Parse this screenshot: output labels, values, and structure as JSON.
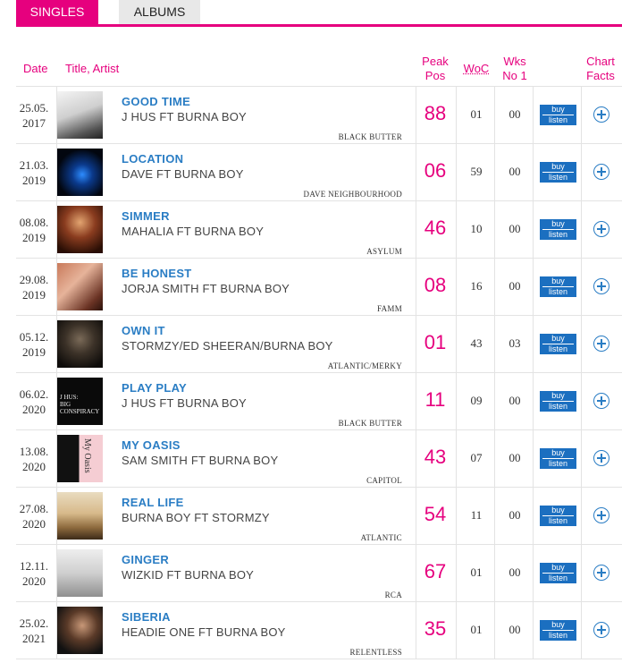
{
  "tabs": {
    "singles": "SINGLES",
    "albums": "ALBUMS"
  },
  "headers": {
    "date": "Date",
    "title_artist": "Title, Artist",
    "peak_line1": "Peak",
    "peak_line2": "Pos",
    "woc": "WoC",
    "wks_line1": "Wks",
    "wks_line2": "No 1",
    "facts_line1": "Chart",
    "facts_line2": "Facts"
  },
  "buy_label": "buy",
  "listen_label": "listen",
  "colors": {
    "accent": "#e6007e",
    "link": "#2a7dc4",
    "button": "#1b6fc0"
  },
  "rows": [
    {
      "date1": "25.05.",
      "date2": "2017",
      "title": "GOOD TIME",
      "artist": "J HUS FT BURNA BOY",
      "label": "BLACK BUTTER",
      "peak": "88",
      "woc": "01",
      "wks": "00"
    },
    {
      "date1": "21.03.",
      "date2": "2019",
      "title": "LOCATION",
      "artist": "DAVE FT BURNA BOY",
      "label": "DAVE NEIGHBOURHOOD",
      "peak": "06",
      "woc": "59",
      "wks": "00"
    },
    {
      "date1": "08.08.",
      "date2": "2019",
      "title": "SIMMER",
      "artist": "MAHALIA FT BURNA BOY",
      "label": "ASYLUM",
      "peak": "46",
      "woc": "10",
      "wks": "00"
    },
    {
      "date1": "29.08.",
      "date2": "2019",
      "title": "BE HONEST",
      "artist": "JORJA SMITH FT BURNA BOY",
      "label": "FAMM",
      "peak": "08",
      "woc": "16",
      "wks": "00"
    },
    {
      "date1": "05.12.",
      "date2": "2019",
      "title": "OWN IT",
      "artist": "STORMZY/ED SHEERAN/BURNA BOY",
      "label": "ATLANTIC/MERKY",
      "peak": "01",
      "woc": "43",
      "wks": "03"
    },
    {
      "date1": "06.02.",
      "date2": "2020",
      "title": "PLAY PLAY",
      "artist": "J HUS FT BURNA BOY",
      "label": "BLACK BUTTER",
      "peak": "11",
      "woc": "09",
      "wks": "00"
    },
    {
      "date1": "13.08.",
      "date2": "2020",
      "title": "MY OASIS",
      "artist": "SAM SMITH FT BURNA BOY",
      "label": "CAPITOL",
      "peak": "43",
      "woc": "07",
      "wks": "00"
    },
    {
      "date1": "27.08.",
      "date2": "2020",
      "title": "REAL LIFE",
      "artist": "BURNA BOY FT STORMZY",
      "label": "ATLANTIC",
      "peak": "54",
      "woc": "11",
      "wks": "00"
    },
    {
      "date1": "12.11.",
      "date2": "2020",
      "title": "GINGER",
      "artist": "WIZKID FT BURNA BOY",
      "label": "RCA",
      "peak": "67",
      "woc": "01",
      "wks": "00"
    },
    {
      "date1": "25.02.",
      "date2": "2021",
      "title": "SIBERIA",
      "artist": "HEADIE ONE FT BURNA BOY",
      "label": "RELENTLESS",
      "peak": "35",
      "woc": "01",
      "wks": "00"
    }
  ],
  "covers": {
    "play_play": [
      "J HUS:",
      "BIG",
      "CONSPIRACY"
    ],
    "my_oasis": "My Oasis"
  }
}
